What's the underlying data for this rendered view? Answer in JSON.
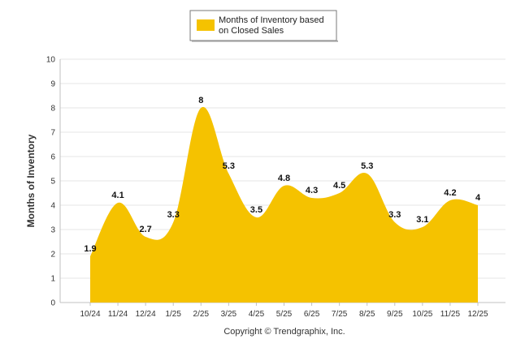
{
  "chart_data": {
    "type": "area",
    "categories": [
      "10/24",
      "11/24",
      "12/24",
      "1/25",
      "2/25",
      "3/25",
      "4/25",
      "5/25",
      "6/25",
      "7/25",
      "8/25",
      "9/25",
      "10/25",
      "11/25",
      "12/25"
    ],
    "series": [
      {
        "name": "Months of Inventory based on Closed Sales",
        "legend_lines": [
          "Months of Inventory based",
          "on Closed Sales"
        ],
        "values": [
          1.9,
          4.1,
          2.7,
          3.3,
          8,
          5.3,
          3.5,
          4.8,
          4.3,
          4.5,
          5.3,
          3.3,
          3.1,
          4.2,
          4
        ],
        "labels": [
          "1.9",
          "4.1",
          "2.7",
          "3.3",
          "8",
          "5.3",
          "3.5",
          "4.8",
          "4.3",
          "4.5",
          "5.3",
          "3.3",
          "3.1",
          "4.2",
          "4"
        ],
        "color": "#f5c200"
      }
    ],
    "ylabel": "Months of Inventory",
    "xlabel": "",
    "ylim": [
      0,
      10
    ],
    "yticks": [
      "0",
      "1",
      "2",
      "3",
      "4",
      "5",
      "6",
      "7",
      "8",
      "9",
      "10"
    ],
    "grid": true,
    "legend_position": "top-center"
  },
  "footer": {
    "copyright": "Copyright © Trendgraphix, Inc."
  },
  "colors": {
    "area": "#f5c200",
    "grid": "#e6e6e6",
    "axis": "#c0c0c0"
  }
}
